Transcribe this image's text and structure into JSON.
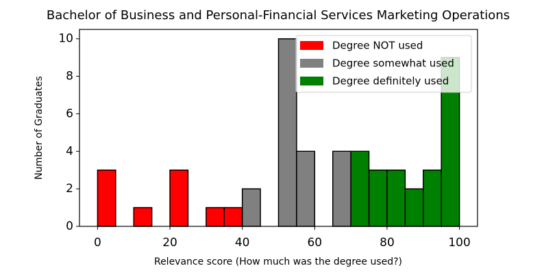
{
  "chart_data": {
    "type": "histogram",
    "title": "Bachelor of Business and Personal-Financial Services Marketing Operations",
    "x_label": "Relevance score (How much was the degree used?)",
    "y_label": "Number of Graduates",
    "bins": [
      0,
      5,
      10,
      15,
      20,
      25,
      30,
      35,
      40,
      45,
      50,
      55,
      60,
      65,
      70,
      75,
      80,
      85,
      90,
      95,
      100
    ],
    "series": [
      {
        "name": "Degree NOT used",
        "color": "#ff0000",
        "values": [
          3,
          0,
          1,
          0,
          3,
          0,
          1,
          1,
          0,
          0,
          0,
          0,
          0,
          0,
          0,
          0,
          0,
          0,
          0,
          0
        ]
      },
      {
        "name": "Degree somewhat used",
        "color": "#808080",
        "values": [
          0,
          0,
          0,
          0,
          0,
          0,
          0,
          0,
          2,
          0,
          10,
          4,
          0,
          4,
          0,
          0,
          0,
          0,
          0,
          0
        ]
      },
      {
        "name": "Degree definitely used",
        "color": "#008000",
        "values": [
          0,
          0,
          0,
          0,
          0,
          0,
          0,
          0,
          0,
          0,
          0,
          0,
          0,
          0,
          4,
          3,
          3,
          2,
          3,
          9
        ]
      }
    ],
    "xlim": [
      -5,
      105
    ],
    "xticks": [
      0,
      20,
      40,
      60,
      80,
      100
    ],
    "ylim": [
      0,
      10.5
    ],
    "yticks": [
      0,
      2,
      4,
      6,
      8,
      10
    ],
    "legend": "upper right"
  }
}
